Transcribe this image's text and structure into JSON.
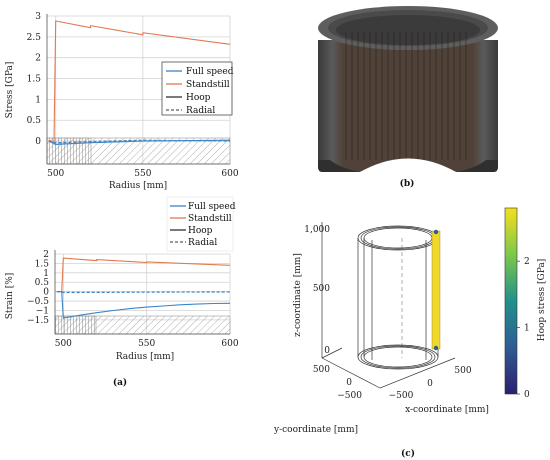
{
  "colors": {
    "full_speed": "#3a86c8",
    "standstill": "#e07b4f",
    "hoop": "#222222",
    "radial": "#333333",
    "cylinder_dark": "#4a3f38",
    "colorbar_top": "#f5e01e",
    "colorbar_bottom": "#2c1f6e"
  },
  "panel_labels": {
    "a": "(a)",
    "b": "(b)",
    "c": "(c)"
  },
  "legend": {
    "full_speed": "Full speed",
    "standstill": "Standstill",
    "hoop": "Hoop",
    "radial": "Radial"
  },
  "chart_data": [
    {
      "type": "line",
      "panel": "a-top",
      "xlabel": "Radius [mm]",
      "ylabel": "Stress [GPa]",
      "xlim": [
        495,
        600
      ],
      "ylim": [
        -0.55,
        3
      ],
      "xticks": [
        "500",
        "550",
        "600"
      ],
      "yticks": [
        "0",
        "0.5",
        "1",
        "1.5",
        "2",
        "2.5",
        "3"
      ],
      "grid": true,
      "legend_position": "right",
      "series": [
        {
          "name": "Standstill",
          "component": "Hoop",
          "x": [
            496,
            499,
            500,
            520,
            520,
            550,
            550,
            600
          ],
          "y": [
            0.02,
            -0.02,
            2.88,
            2.72,
            2.77,
            2.55,
            2.6,
            2.32
          ]
        },
        {
          "name": "Standstill",
          "component": "Radial",
          "x": [
            496,
            500,
            520,
            550,
            600
          ],
          "y": [
            0.0,
            -0.05,
            -0.03,
            0.01,
            0.01
          ]
        },
        {
          "name": "Full speed",
          "component": "Hoop",
          "x": [
            496,
            500,
            520,
            550,
            600
          ],
          "y": [
            0.0,
            -0.08,
            -0.04,
            0.0,
            0.02
          ]
        },
        {
          "name": "Full speed",
          "component": "Radial",
          "x": [
            496,
            500,
            520,
            550,
            600
          ],
          "y": [
            0.0,
            -0.04,
            -0.01,
            0.02,
            0.0
          ]
        }
      ]
    },
    {
      "type": "line",
      "panel": "a-bottom",
      "xlabel": "Radius [mm]",
      "ylabel": "Strain [%]",
      "xlim": [
        495,
        600
      ],
      "ylim": [
        -2.25,
        2
      ],
      "xticks": [
        "500",
        "550",
        "600"
      ],
      "yticks": [
        "−1.5",
        "−1",
        "−0.5",
        "0",
        "0.5",
        "1",
        "1.5",
        "2"
      ],
      "grid": true,
      "legend_position": "top-right",
      "series": [
        {
          "name": "Standstill",
          "component": "Hoop",
          "x": [
            496,
            499,
            500,
            520,
            520,
            550,
            550,
            600
          ],
          "y": [
            0.0,
            0.0,
            1.78,
            1.65,
            1.7,
            1.55,
            1.58,
            1.4
          ]
        },
        {
          "name": "Standstill",
          "component": "Radial",
          "x": [
            496,
            500,
            550,
            600
          ],
          "y": [
            0.0,
            -0.02,
            -0.02,
            -0.01
          ]
        },
        {
          "name": "Full speed",
          "component": "Hoop",
          "x": [
            496,
            499,
            500,
            510,
            520,
            530,
            540,
            550,
            560,
            570,
            580,
            590,
            600
          ],
          "y": [
            0.0,
            0.0,
            -1.4,
            -1.25,
            -1.12,
            -1.0,
            -0.9,
            -0.82,
            -0.76,
            -0.7,
            -0.66,
            -0.63,
            -0.62
          ]
        },
        {
          "name": "Full speed",
          "component": "Radial",
          "x": [
            496,
            500,
            550,
            600
          ],
          "y": [
            0.0,
            -0.05,
            -0.03,
            -0.02
          ]
        }
      ]
    },
    {
      "type": "scatter",
      "panel": "c",
      "xlabel": "x-coordinate [mm]",
      "ylabel": "y-coordinate [mm]",
      "zlabel": "z-coordinate [mm]",
      "zticks": [
        "0",
        "500",
        "1,000"
      ],
      "xticks": [
        "−500",
        "0",
        "500"
      ],
      "yticks": [
        "−500",
        "0",
        "500"
      ],
      "colorbar": {
        "label": "Hoop stress [GPa]",
        "ticks": [
          "0",
          "1",
          "2"
        ],
        "range": [
          0,
          2.8
        ]
      }
    }
  ]
}
